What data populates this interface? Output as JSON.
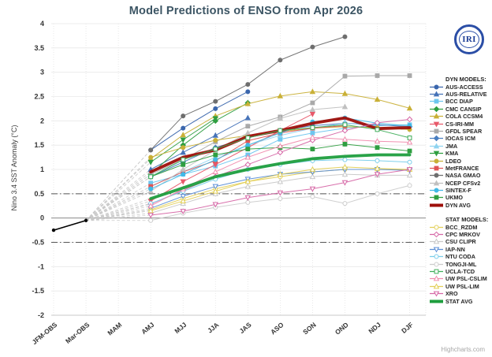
{
  "page": {
    "credit": "Highcharts.com"
  },
  "logo": {
    "text": "IRI"
  },
  "legend": {
    "dyn_header": "DYN MODELS:",
    "stat_header": "STAT MODELS:"
  },
  "chart_data": {
    "type": "line",
    "title": "Model Predictions of ENSO from Apr 2026",
    "xlabel": "",
    "ylabel": "Nino 3.4 SST Anomaly (°C)",
    "categories": [
      "JFM-OBS",
      "Mar-OBS",
      "MAM",
      "AMJ",
      "MJJ",
      "JJA",
      "JAS",
      "ASO",
      "SON",
      "OND",
      "NDJ",
      "DJF"
    ],
    "ylim": [
      -2,
      4
    ],
    "ytick_step": 0.5,
    "grid": true,
    "zero_line": 0,
    "threshold_lines": [
      0.5,
      -0.5
    ],
    "legend_position": "right",
    "forecast_start_index": 3,
    "observation": {
      "name": "OBS",
      "color": "#000000",
      "x_indices": [
        0,
        1
      ],
      "values": [
        -0.25,
        -0.05
      ]
    },
    "fan": {
      "origin_index": 1,
      "origin_value": -0.05,
      "color": "#c9c9c9"
    },
    "series": [
      {
        "name": "AUS-ACCESS",
        "group": "dyn",
        "color": "#3a66ad",
        "marker": "circle",
        "filled": true,
        "thick": false,
        "values": [
          1.4,
          1.85,
          2.25,
          2.6,
          null,
          null,
          null,
          null,
          null
        ]
      },
      {
        "name": "AUS-RELATIVE",
        "group": "dyn",
        "color": "#4673b8",
        "marker": "triangle",
        "filled": true,
        "thick": false,
        "values": [
          1.0,
          1.35,
          1.7,
          2.06,
          null,
          null,
          null,
          null,
          null
        ]
      },
      {
        "name": "BCC DIAP",
        "group": "dyn",
        "color": "#6ec6ef",
        "marker": "square",
        "filled": true,
        "thick": false,
        "values": [
          0.72,
          0.9,
          1.07,
          1.3,
          1.62,
          1.75,
          1.85,
          1.9,
          1.92
        ]
      },
      {
        "name": "CMC CANSIP",
        "group": "dyn",
        "color": "#2f9e41",
        "marker": "diamond",
        "filled": true,
        "thick": false,
        "values": [
          0.9,
          1.5,
          2.0,
          2.37,
          null,
          null,
          null,
          null,
          null
        ]
      },
      {
        "name": "COLA CCSM4",
        "group": "dyn",
        "color": "#c9b037",
        "marker": "triangle",
        "filled": true,
        "thick": false,
        "values": [
          1.22,
          1.71,
          2.1,
          2.35,
          2.51,
          2.6,
          2.56,
          2.44,
          2.26
        ]
      },
      {
        "name": "CS-IRI-MM",
        "group": "dyn",
        "color": "#e8596a",
        "marker": "triangle-down",
        "filled": true,
        "thick": false,
        "values": [
          0.35,
          0.75,
          1.1,
          1.45,
          1.8,
          2.14,
          null,
          null,
          null
        ]
      },
      {
        "name": "GFDL SPEAR",
        "group": "dyn",
        "color": "#a9a9a9",
        "marker": "square",
        "filled": true,
        "thick": false,
        "values": [
          0.9,
          1.2,
          1.57,
          1.89,
          2.08,
          2.37,
          2.92,
          2.93,
          2.93
        ]
      },
      {
        "name": "IOCAS ICM",
        "group": "dyn",
        "color": "#4a7fc1",
        "marker": "diamond",
        "filled": true,
        "thick": false,
        "values": [
          0.85,
          1.15,
          1.45,
          1.65,
          1.8,
          1.9,
          1.95,
          1.92,
          1.88
        ]
      },
      {
        "name": "JMA",
        "group": "dyn",
        "color": "#8fd4f0",
        "marker": "triangle",
        "filled": true,
        "thick": false,
        "values": [
          0.65,
          0.95,
          1.25,
          1.5,
          1.7,
          1.85,
          1.95,
          1.9,
          null
        ]
      },
      {
        "name": "KMA",
        "group": "dyn",
        "color": "#2f9e41",
        "marker": "triangle-down",
        "filled": true,
        "thick": false,
        "values": [
          1.15,
          1.61,
          2.05,
          null,
          null,
          null,
          null,
          null,
          null
        ]
      },
      {
        "name": "LDEO",
        "group": "dyn",
        "color": "#c9b037",
        "marker": "circle",
        "filled": true,
        "thick": false,
        "values": [
          1.25,
          1.45,
          1.6,
          1.7,
          1.78,
          1.85,
          1.88,
          1.86,
          1.82
        ]
      },
      {
        "name": "MetFRANCE",
        "group": "dyn",
        "color": "#e05555",
        "marker": "square",
        "filled": true,
        "thick": false,
        "values": [
          0.65,
          0.95,
          1.18,
          1.59,
          1.75,
          1.85,
          1.9,
          null,
          null
        ]
      },
      {
        "name": "NASA GMAO",
        "group": "dyn",
        "color": "#6e6e6e",
        "marker": "circle",
        "filled": true,
        "thick": false,
        "values": [
          1.4,
          2.1,
          2.4,
          2.75,
          3.25,
          3.52,
          3.73,
          null,
          null
        ]
      },
      {
        "name": "NCEP CFSv2",
        "group": "dyn",
        "color": "#c0c0c0",
        "marker": "triangle",
        "filled": true,
        "thick": false,
        "values": [
          0.55,
          1.0,
          1.4,
          1.75,
          2.05,
          2.23,
          2.29,
          null,
          null
        ]
      },
      {
        "name": "SINTEX-F",
        "group": "dyn",
        "color": "#41b9e6",
        "marker": "circle",
        "filled": true,
        "thick": false,
        "values": [
          0.6,
          0.9,
          1.2,
          1.5,
          1.75,
          1.98,
          2.06,
          1.95,
          1.9
        ]
      },
      {
        "name": "UKMO",
        "group": "dyn",
        "color": "#2f9e41",
        "marker": "square",
        "filled": true,
        "thick": false,
        "values": [
          0.85,
          1.1,
          1.3,
          1.42,
          1.45,
          1.42,
          1.52,
          1.45,
          1.38
        ]
      },
      {
        "name": "DYN AVG",
        "group": "dyn",
        "color": "#9e0f0a",
        "marker": "none",
        "filled": true,
        "thick": true,
        "values": [
          0.95,
          1.25,
          1.4,
          1.68,
          1.8,
          1.95,
          2.06,
          1.84,
          1.86
        ]
      },
      {
        "name": "BCC_RZDM",
        "group": "stat",
        "color": "#e3cf57",
        "marker": "circle",
        "filled": false,
        "thick": false,
        "values": [
          0.17,
          0.4,
          0.6,
          0.75,
          0.85,
          0.95,
          1.0,
          1.0,
          1.0
        ]
      },
      {
        "name": "CPC MRKOV",
        "group": "stat",
        "color": "#d667a6",
        "marker": "diamond",
        "filled": false,
        "thick": false,
        "values": [
          0.29,
          0.57,
          0.85,
          1.1,
          1.35,
          1.6,
          1.8,
          1.96,
          2.03
        ]
      },
      {
        "name": "CSU CLIPR",
        "group": "stat",
        "color": "#c8c8c8",
        "marker": "triangle",
        "filled": false,
        "thick": false,
        "values": [
          0.1,
          0.3,
          0.5,
          0.65,
          0.75,
          0.85,
          0.9,
          0.88,
          0.88
        ]
      },
      {
        "name": "IAP-NN",
        "group": "stat",
        "color": "#5b8ed6",
        "marker": "triangle-down",
        "filled": false,
        "thick": false,
        "values": [
          0.2,
          0.45,
          0.65,
          0.8,
          0.9,
          0.95,
          1.0,
          1.0,
          0.98
        ]
      },
      {
        "name": "NTU CODA",
        "group": "stat",
        "color": "#79cdea",
        "marker": "circle",
        "filled": false,
        "thick": false,
        "values": [
          0.3,
          0.55,
          0.8,
          1.0,
          1.1,
          1.18,
          1.2,
          1.18,
          1.15
        ]
      },
      {
        "name": "TONGJI-ML",
        "group": "stat",
        "color": "#cccccc",
        "marker": "circle",
        "filled": false,
        "thick": false,
        "values": [
          -0.05,
          0.1,
          0.22,
          0.32,
          0.4,
          0.44,
          0.3,
          0.5,
          0.67
        ]
      },
      {
        "name": "UCLA-TCD",
        "group": "stat",
        "color": "#3fae5a",
        "marker": "square",
        "filled": false,
        "thick": false,
        "values": [
          0.85,
          1.2,
          1.42,
          1.65,
          1.8,
          1.86,
          1.92,
          1.82,
          1.65
        ]
      },
      {
        "name": "UW PSL-CSLIM",
        "group": "stat",
        "color": "#f08cae",
        "marker": "triangle",
        "filled": false,
        "thick": false,
        "values": [
          0.25,
          0.6,
          0.95,
          1.25,
          1.48,
          1.66,
          1.62,
          1.58,
          1.56
        ]
      },
      {
        "name": "UW PSL-LIM",
        "group": "stat",
        "color": "#e3cf57",
        "marker": "triangle",
        "filled": false,
        "thick": false,
        "values": [
          0.15,
          0.35,
          0.55,
          0.75,
          0.9,
          1.0,
          1.05,
          1.02,
          1.0
        ]
      },
      {
        "name": "XRO",
        "group": "stat",
        "color": "#d667a6",
        "marker": "triangle-down",
        "filled": false,
        "thick": false,
        "values": [
          0.06,
          0.14,
          0.28,
          0.42,
          0.52,
          0.6,
          0.73,
          0.9,
          1.0
        ]
      },
      {
        "name": "STAT AVG",
        "group": "stat",
        "color": "#1e9e3e",
        "marker": "none",
        "filled": true,
        "thick": true,
        "values": [
          0.4,
          0.62,
          0.85,
          1.0,
          1.12,
          1.22,
          1.27,
          1.3,
          1.3
        ]
      }
    ]
  }
}
